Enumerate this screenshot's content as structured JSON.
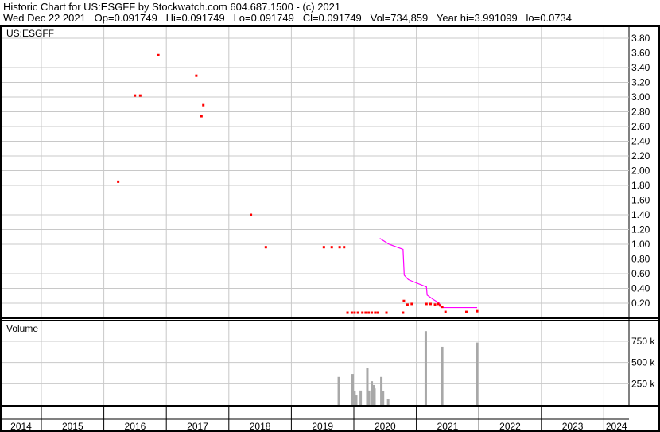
{
  "header": {
    "title": "Historic Chart for US:ESGFF by Stockwatch.com 604.687.1500 - (c) 2021",
    "quote": "Wed Dec 22 2021   Op=0.091749   Hi=0.091749   Lo=0.091749   Cl=0.091749   Vol=734,859   Year hi=3.991099   lo=0.0734"
  },
  "chart_data": [
    {
      "type": "scatter",
      "title": "US:ESGFF",
      "ylim": [
        0,
        3.9
      ],
      "grid": true,
      "yticks": [
        "0.20",
        "0.40",
        "0.60",
        "0.80",
        "1.00",
        "1.20",
        "1.40",
        "1.60",
        "1.80",
        "2.00",
        "2.20",
        "2.40",
        "2.60",
        "2.80",
        "3.00",
        "3.20",
        "3.40",
        "3.60",
        "3.80"
      ],
      "colors": {
        "price": "#ff0000",
        "line": "#ff00ff",
        "grid": "#c8c8c8"
      },
      "points": [
        [
          "2016-03-25",
          1.85
        ],
        [
          "2016-07-01",
          3.02
        ],
        [
          "2016-08-01",
          3.02
        ],
        [
          "2016-11-15",
          3.57
        ],
        [
          "2017-06-25",
          3.29
        ],
        [
          "2017-07-25",
          2.74
        ],
        [
          "2017-08-05",
          2.89
        ],
        [
          "2018-05-10",
          1.4
        ],
        [
          "2018-08-05",
          0.96
        ],
        [
          "2019-07-10",
          0.96
        ],
        [
          "2019-08-25",
          0.96
        ],
        [
          "2019-10-10",
          0.96
        ],
        [
          "2019-11-05",
          0.96
        ],
        [
          "2019-11-25",
          0.07
        ],
        [
          "2019-12-20",
          0.07
        ],
        [
          "2020-01-05",
          0.07
        ],
        [
          "2020-01-25",
          0.07
        ],
        [
          "2020-02-20",
          0.07
        ],
        [
          "2020-03-10",
          0.07
        ],
        [
          "2020-03-28",
          0.07
        ],
        [
          "2020-04-15",
          0.07
        ],
        [
          "2020-05-05",
          0.07
        ],
        [
          "2020-05-20",
          0.07
        ],
        [
          "2020-07-10",
          0.07
        ],
        [
          "2020-10-15",
          0.07
        ],
        [
          "2020-10-20",
          0.23
        ],
        [
          "2020-11-10",
          0.18
        ],
        [
          "2020-12-05",
          0.19
        ],
        [
          "2021-03-01",
          0.19
        ],
        [
          "2021-03-25",
          0.19
        ],
        [
          "2021-04-20",
          0.18
        ],
        [
          "2021-05-08",
          0.19
        ],
        [
          "2021-05-20",
          0.17
        ],
        [
          "2021-06-01",
          0.15
        ],
        [
          "2021-06-20",
          0.08
        ],
        [
          "2021-10-20",
          0.08
        ],
        [
          "2021-12-22",
          0.09
        ]
      ],
      "line": [
        [
          "2020-06-01",
          1.08
        ],
        [
          "2020-07-25",
          1.0
        ],
        [
          "2020-10-15",
          0.93
        ],
        [
          "2020-10-22",
          0.58
        ],
        [
          "2020-11-15",
          0.52
        ],
        [
          "2020-12-05",
          0.5
        ],
        [
          "2021-03-01",
          0.42
        ],
        [
          "2021-03-05",
          0.31
        ],
        [
          "2021-04-10",
          0.25
        ],
        [
          "2021-05-15",
          0.2
        ],
        [
          "2021-05-25",
          0.14
        ],
        [
          "2021-12-22",
          0.14
        ]
      ]
    },
    {
      "type": "bar",
      "title": "Volume",
      "ylim": [
        0,
        850000
      ],
      "yticks": [
        "250 k",
        "500 k",
        "750 k"
      ],
      "yvals": [
        250000,
        500000,
        750000
      ],
      "colors": {
        "bar": "#a8a8a8"
      },
      "bars": [
        [
          "2019-10-05",
          330000
        ],
        [
          "2019-12-25",
          365000
        ],
        [
          "2020-01-05",
          160000
        ],
        [
          "2020-01-15",
          112000
        ],
        [
          "2020-02-10",
          170000
        ],
        [
          "2020-03-20",
          440000
        ],
        [
          "2020-03-30",
          170000
        ],
        [
          "2020-04-15",
          280000
        ],
        [
          "2020-04-25",
          235000
        ],
        [
          "2020-05-01",
          195000
        ],
        [
          "2020-06-10",
          330000
        ],
        [
          "2020-06-20",
          160000
        ],
        [
          "2020-07-20",
          66000
        ],
        [
          "2021-02-25",
          870000
        ],
        [
          "2021-06-01",
          685000
        ],
        [
          "2021-12-22",
          734859
        ]
      ]
    },
    {
      "type": "axis",
      "xticks": [
        "2014",
        "2015",
        "2016",
        "2017",
        "2018",
        "2019",
        "2020",
        "2021",
        "2022",
        "2023",
        "2024"
      ]
    }
  ]
}
